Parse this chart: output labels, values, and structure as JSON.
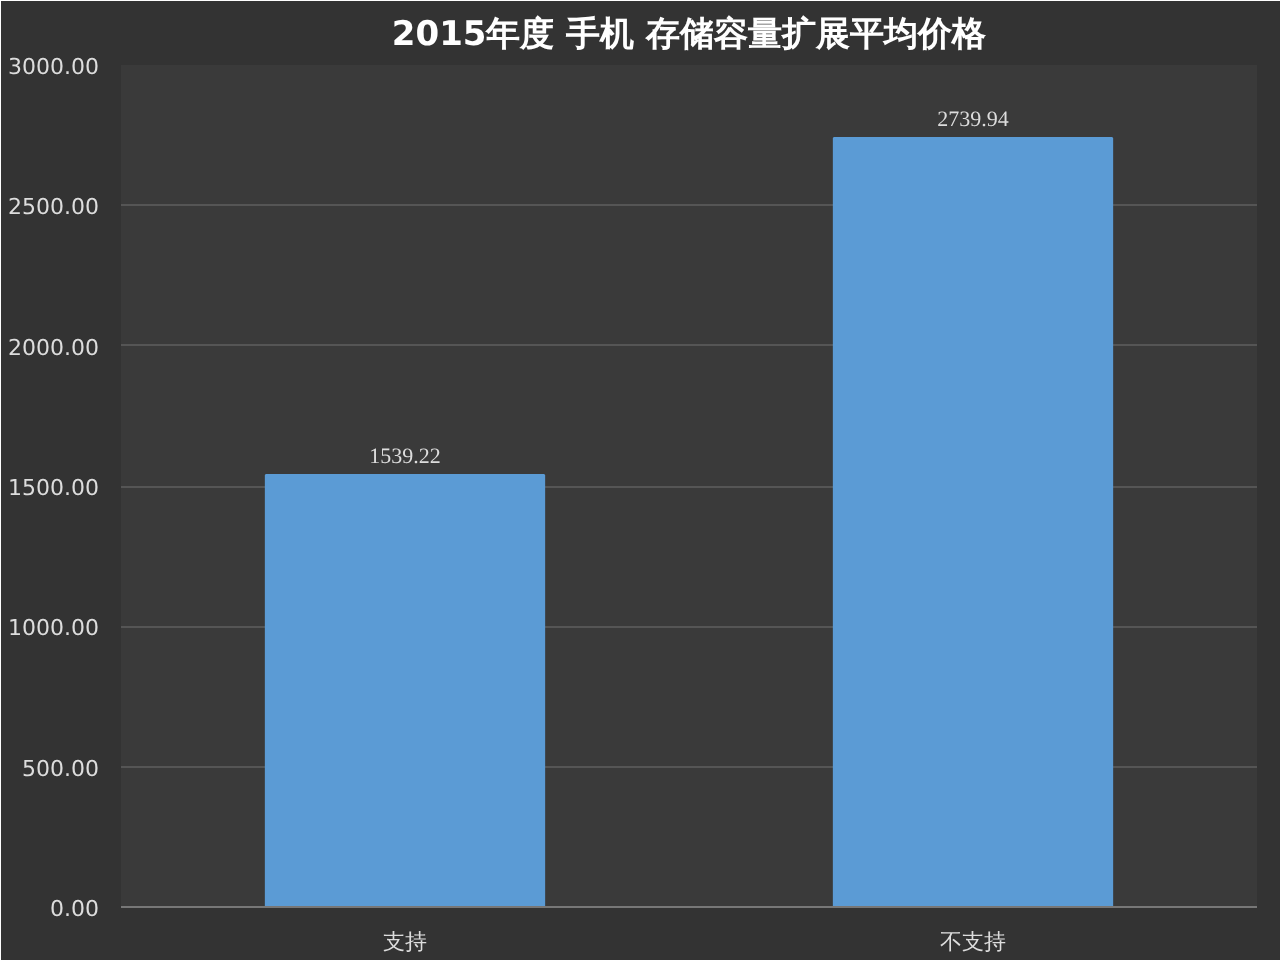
{
  "chart_data": {
    "type": "bar",
    "title": "2015年度 手机 存储容量扩展平均价格",
    "categories": [
      "支持",
      "不支持"
    ],
    "values": [
      1539.22,
      2739.94
    ],
    "color": "#5b9bd5",
    "ylim": [
      0,
      3000
    ],
    "yticks": [
      {
        "value": 0,
        "label": "0.00"
      },
      {
        "value": 500,
        "label": "500.00"
      },
      {
        "value": 1000,
        "label": "1000.00"
      },
      {
        "value": 1500,
        "label": "1500.00"
      },
      {
        "value": 2000,
        "label": "2000.00"
      },
      {
        "value": 2500,
        "label": "2500.00"
      },
      {
        "value": 3000,
        "label": "3000.00"
      }
    ],
    "grid": "y",
    "data_labels": true
  }
}
